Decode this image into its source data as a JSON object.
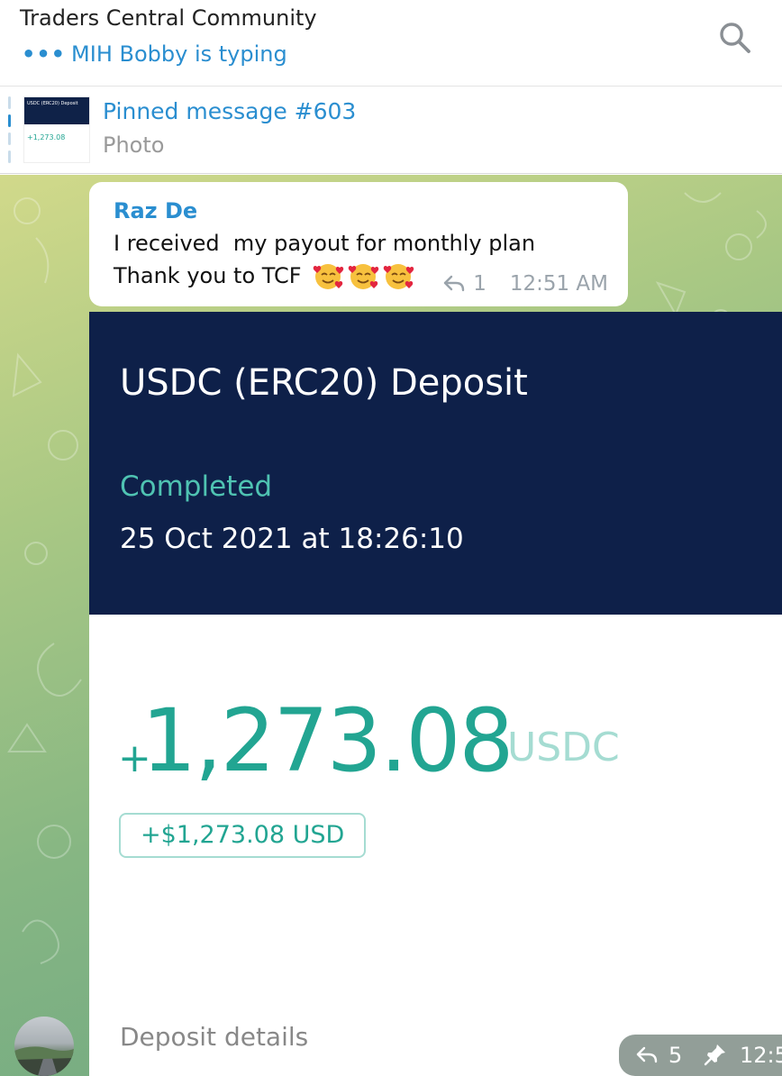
{
  "header": {
    "title": "Traders Central Community",
    "typing_dots": "•••",
    "typing_text": "MIH Bobby is typing",
    "search_icon": "search-icon"
  },
  "pinned": {
    "title": "Pinned message #603",
    "subtitle": "Photo",
    "thumb_title": "USDC (ERC20) Deposit",
    "thumb_amount": "+1,273.08"
  },
  "message": {
    "sender": "Raz De",
    "line1": "I received  my payout for monthly plan",
    "line2": "Thank you to TCF",
    "emojis": [
      "smiling-face-with-hearts",
      "smiling-face-with-hearts",
      "smiling-face-with-hearts"
    ],
    "reply_count": "1",
    "time": "12:51 AM"
  },
  "photo": {
    "title": "USDC (ERC20) Deposit",
    "status": "Completed",
    "date": "25 Oct 2021 at 18:26:10",
    "plus": "+",
    "amount": "1,273.08",
    "unit": "USDC",
    "usd_value": "+$1,273.08 USD",
    "details_label": "Deposit details"
  },
  "photo_meta": {
    "reply_count": "5",
    "time": "12:5"
  },
  "colors": {
    "accent": "#2a8ed0",
    "deposit_green": "#22a592",
    "deposit_header": "#0e2049"
  }
}
